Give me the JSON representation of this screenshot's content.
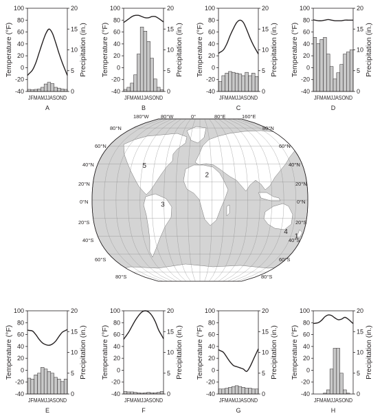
{
  "labels": {
    "temperature_axis": "Temperature (°F)",
    "precip_axis": "Precipitation (in.)",
    "months": "JFMAMJJASOND"
  },
  "colors": {
    "bar_fill": "#c8c8c8",
    "map_land": "#ffffff",
    "map_ocean": "#d4d4d4",
    "line": "#231f20"
  },
  "chart_data": [
    {
      "type": "bar",
      "letter": "A",
      "categories": [
        "J",
        "F",
        "M",
        "A",
        "M",
        "J",
        "J",
        "A",
        "S",
        "O",
        "N",
        "D"
      ],
      "series": [
        {
          "values": [
            -10,
            -4,
            8,
            25,
            42,
            57,
            65,
            58,
            42,
            24,
            8,
            -6
          ]
        },
        {
          "values": [
            0.5,
            0.4,
            0.5,
            0.6,
            1.0,
            1.8,
            2.2,
            1.9,
            1.0,
            0.8,
            0.6,
            0.5
          ]
        }
      ],
      "ylim_temperature": [
        -40,
        100
      ],
      "ylim_precipitation": [
        0,
        20
      ]
    },
    {
      "type": "bar",
      "letter": "B",
      "categories": [
        "J",
        "F",
        "M",
        "A",
        "M",
        "J",
        "J",
        "A",
        "S",
        "O",
        "N",
        "D"
      ],
      "series": [
        {
          "values": [
            78,
            82,
            86,
            88,
            88,
            86,
            84,
            84,
            86,
            86,
            83,
            79
          ]
        },
        {
          "values": [
            0.5,
            1.0,
            2.0,
            4.0,
            9.0,
            15.5,
            14.5,
            12.0,
            8.0,
            3.0,
            1.0,
            0.4
          ]
        }
      ],
      "ylim_temperature": [
        -40,
        100
      ],
      "ylim_precipitation": [
        0,
        20
      ]
    },
    {
      "type": "bar",
      "letter": "C",
      "categories": [
        "J",
        "F",
        "M",
        "A",
        "M",
        "J",
        "J",
        "A",
        "S",
        "O",
        "N",
        "D"
      ],
      "series": [
        {
          "values": [
            26,
            30,
            40,
            54,
            66,
            76,
            80,
            76,
            64,
            50,
            38,
            28
          ]
        },
        {
          "values": [
            2.4,
            3.8,
            4.4,
            4.8,
            4.6,
            4.4,
            4.2,
            3.8,
            4.6,
            3.8,
            4.4,
            3.6
          ]
        }
      ],
      "ylim_temperature": [
        -40,
        100
      ],
      "ylim_precipitation": [
        0,
        20
      ]
    },
    {
      "type": "bar",
      "letter": "D",
      "categories": [
        "J",
        "F",
        "M",
        "A",
        "M",
        "J",
        "J",
        "A",
        "S",
        "O",
        "N",
        "D"
      ],
      "series": [
        {
          "values": [
            80,
            79,
            79,
            80,
            81,
            80,
            79,
            79,
            79,
            80,
            80,
            80
          ]
        },
        {
          "values": [
            13.0,
            11.5,
            12.5,
            13.0,
            9.0,
            6.0,
            3.0,
            4.5,
            6.5,
            9.0,
            9.5,
            10.0
          ]
        }
      ],
      "ylim_temperature": [
        -40,
        100
      ],
      "ylim_precipitation": [
        0,
        20
      ]
    },
    {
      "type": "bar",
      "letter": "E",
      "categories": [
        "J",
        "F",
        "M",
        "A",
        "M",
        "J",
        "J",
        "A",
        "S",
        "O",
        "N",
        "D"
      ],
      "series": [
        {
          "values": [
            67,
            66,
            60,
            52,
            46,
            43,
            42,
            44,
            49,
            57,
            64,
            67
          ]
        },
        {
          "values": [
            3.8,
            3.6,
            4.6,
            5.0,
            6.4,
            6.0,
            5.4,
            5.0,
            4.0,
            3.6,
            3.0,
            3.6
          ]
        }
      ],
      "ylim_temperature": [
        -40,
        100
      ],
      "ylim_precipitation": [
        0,
        20
      ]
    },
    {
      "type": "bar",
      "letter": "F",
      "categories": [
        "J",
        "F",
        "M",
        "A",
        "M",
        "J",
        "J",
        "A",
        "S",
        "O",
        "N",
        "D"
      ],
      "series": [
        {
          "values": [
            56,
            64,
            74,
            84,
            92,
            98,
            100,
            98,
            92,
            82,
            68,
            58
          ]
        },
        {
          "values": [
            0.6,
            0.5,
            0.5,
            0.4,
            0.3,
            0.2,
            0.3,
            0.4,
            0.3,
            0.3,
            0.4,
            0.6
          ]
        }
      ],
      "ylim_temperature": [
        -40,
        100
      ],
      "ylim_precipitation": [
        0,
        20
      ]
    },
    {
      "type": "bar",
      "letter": "G",
      "categories": [
        "J",
        "F",
        "M",
        "A",
        "M",
        "J",
        "J",
        "A",
        "S",
        "O",
        "N",
        "D"
      ],
      "series": [
        {
          "values": [
            33,
            30,
            22,
            14,
            8,
            6,
            4,
            2,
            -2,
            6,
            18,
            30
          ]
        },
        {
          "values": [
            1.2,
            1.2,
            1.4,
            1.6,
            1.8,
            2.0,
            1.8,
            1.6,
            1.4,
            1.4,
            1.2,
            1.2
          ]
        }
      ],
      "ylim_temperature": [
        -40,
        100
      ],
      "ylim_precipitation": [
        0,
        20
      ]
    },
    {
      "type": "bar",
      "letter": "H",
      "categories": [
        "J",
        "F",
        "M",
        "A",
        "M",
        "J",
        "J",
        "A",
        "S",
        "O",
        "N",
        "D"
      ],
      "series": [
        {
          "values": [
            79,
            80,
            84,
            90,
            93,
            92,
            88,
            85,
            86,
            89,
            86,
            81
          ]
        },
        {
          "values": [
            0.0,
            0.0,
            0.0,
            0.2,
            1.0,
            6.0,
            11.0,
            11.0,
            5.0,
            1.0,
            0.2,
            0.0
          ]
        }
      ],
      "ylim_temperature": [
        -40,
        100
      ],
      "ylim_precipitation": [
        0,
        20
      ]
    }
  ],
  "world_map": {
    "longitude_labels": [
      "180°W",
      "80°W",
      "0°",
      "80°E",
      "160°E"
    ],
    "latitude_labels_left": [
      "80°N",
      "60°N",
      "40°N",
      "20°N",
      "0°N",
      "20°S",
      "40°S",
      "60°S",
      "80°S"
    ],
    "latitude_labels_right": [
      "80°N",
      "60°N",
      "40°N",
      "20°N",
      "0°N",
      "20°S",
      "40°S",
      "60°S",
      "80°S"
    ],
    "location_markers": [
      {
        "label": "1",
        "lon": 170,
        "lat": -40
      },
      {
        "label": "2",
        "lon": 12,
        "lat": 28
      },
      {
        "label": "3",
        "lon": -62,
        "lat": -5
      },
      {
        "label": "4",
        "lon": 149,
        "lat": -35
      },
      {
        "label": "5",
        "lon": -97,
        "lat": 38
      }
    ]
  }
}
